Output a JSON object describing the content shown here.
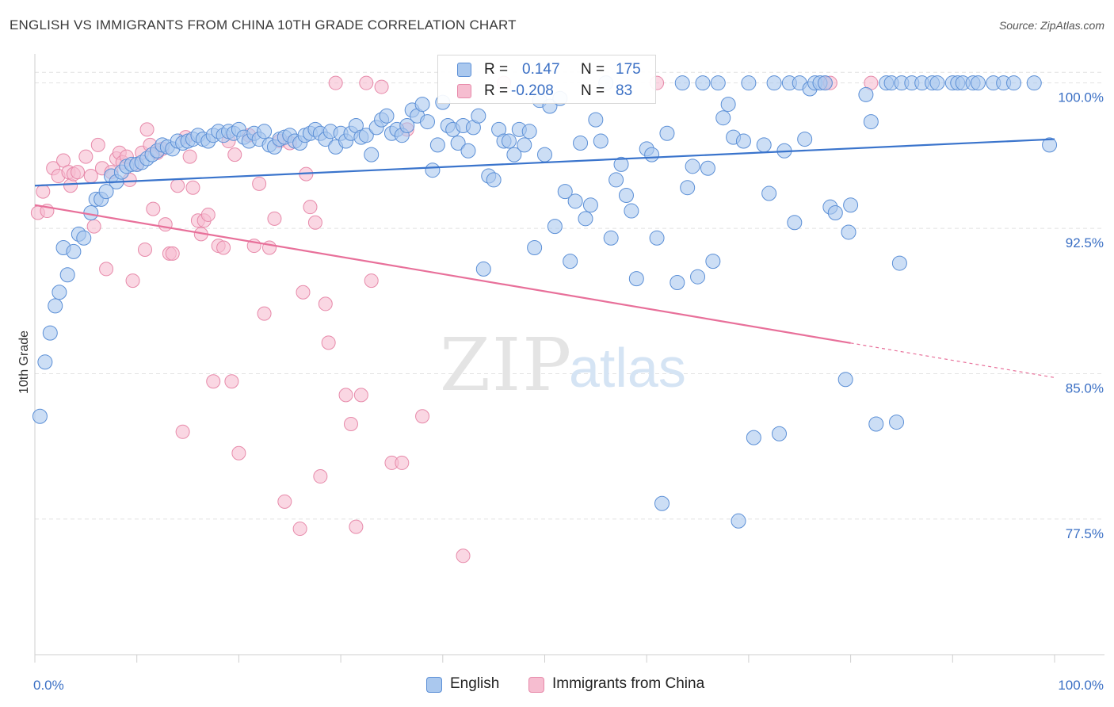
{
  "header": {
    "title": "ENGLISH VS IMMIGRANTS FROM CHINA 10TH GRADE CORRELATION CHART",
    "source": "Source: ZipAtlas.com"
  },
  "watermark": {
    "zip": "ZIP",
    "atlas": "atlas"
  },
  "legend": {
    "r_label": "R =",
    "n_label": "N =",
    "english": {
      "r": "0.147",
      "n": "175"
    },
    "china": {
      "r": "-0.208",
      "n": "83"
    }
  },
  "colors": {
    "english_fill": "#aac8ee",
    "english_stroke": "#5b8fd6",
    "english_line": "#3a74cc",
    "china_fill": "#f6bdd0",
    "china_stroke": "#e78aaa",
    "china_line": "#e8709a",
    "tick_text": "#3a6fc4",
    "grid": "#e2e2e2"
  },
  "chart_data": {
    "type": "scatter",
    "xlabel": "",
    "ylabel": "10th Grade",
    "xlim": [
      0,
      100
    ],
    "ylim": [
      70.5,
      101.5
    ],
    "x_tick_labels": [
      "0.0%",
      "100.0%"
    ],
    "y_ticks": [
      77.5,
      85.0,
      92.5,
      100.0
    ],
    "y_tick_labels": [
      "77.5%",
      "85.0%",
      "92.5%",
      "100.0%"
    ],
    "grid": true,
    "legend_position": "bottom-center",
    "series": [
      {
        "name": "English",
        "trend": {
          "x0": 0,
          "y0": 94.7,
          "x1": 100,
          "y1": 97.1
        },
        "points": [
          [
            0.5,
            82.8
          ],
          [
            1,
            85.6
          ],
          [
            1.5,
            87.1
          ],
          [
            2,
            88.5
          ],
          [
            2.4,
            89.2
          ],
          [
            2.8,
            91.5
          ],
          [
            3.2,
            90.1
          ],
          [
            3.8,
            91.3
          ],
          [
            4.3,
            92.2
          ],
          [
            4.8,
            92.0
          ],
          [
            5.5,
            93.3
          ],
          [
            6,
            94.0
          ],
          [
            6.5,
            94.0
          ],
          [
            7,
            94.4
          ],
          [
            7.5,
            95.2
          ],
          [
            8,
            94.9
          ],
          [
            8.5,
            95.4
          ],
          [
            9,
            95.7
          ],
          [
            9.5,
            95.8
          ],
          [
            10,
            95.8
          ],
          [
            10.5,
            95.9
          ],
          [
            11,
            96.1
          ],
          [
            11.5,
            96.3
          ],
          [
            12,
            96.5
          ],
          [
            12.5,
            96.8
          ],
          [
            13,
            96.7
          ],
          [
            13.5,
            96.6
          ],
          [
            14,
            97.0
          ],
          [
            14.5,
            96.9
          ],
          [
            15,
            97.0
          ],
          [
            15.5,
            97.1
          ],
          [
            16,
            97.3
          ],
          [
            16.5,
            97.1
          ],
          [
            17,
            97.0
          ],
          [
            17.5,
            97.3
          ],
          [
            18,
            97.5
          ],
          [
            18.5,
            97.3
          ],
          [
            19,
            97.5
          ],
          [
            19.5,
            97.4
          ],
          [
            20,
            97.6
          ],
          [
            20.5,
            97.2
          ],
          [
            21,
            97.0
          ],
          [
            21.5,
            97.4
          ],
          [
            22,
            97.1
          ],
          [
            22.5,
            97.5
          ],
          [
            23,
            96.8
          ],
          [
            23.5,
            96.7
          ],
          [
            24,
            97.1
          ],
          [
            24.5,
            97.2
          ],
          [
            25,
            97.3
          ],
          [
            25.5,
            97.0
          ],
          [
            26,
            96.9
          ],
          [
            26.5,
            97.3
          ],
          [
            27,
            97.4
          ],
          [
            27.5,
            97.6
          ],
          [
            28,
            97.4
          ],
          [
            28.5,
            97.1
          ],
          [
            29,
            97.5
          ],
          [
            29.5,
            96.7
          ],
          [
            30,
            97.4
          ],
          [
            30.5,
            97.0
          ],
          [
            31,
            97.4
          ],
          [
            31.5,
            97.8
          ],
          [
            32,
            97.2
          ],
          [
            32.5,
            97.3
          ],
          [
            33,
            96.3
          ],
          [
            33.5,
            97.7
          ],
          [
            34,
            98.1
          ],
          [
            34.5,
            98.3
          ],
          [
            35,
            97.4
          ],
          [
            35.5,
            97.6
          ],
          [
            36,
            97.3
          ],
          [
            36.5,
            97.8
          ],
          [
            37,
            98.6
          ],
          [
            37.5,
            98.3
          ],
          [
            38,
            98.9
          ],
          [
            38.5,
            98.0
          ],
          [
            39,
            95.5
          ],
          [
            39.5,
            96.8
          ],
          [
            40,
            99.0
          ],
          [
            40.5,
            97.8
          ],
          [
            41,
            97.6
          ],
          [
            41.5,
            96.9
          ],
          [
            42,
            97.8
          ],
          [
            42.5,
            96.5
          ],
          [
            43,
            97.7
          ],
          [
            43.5,
            98.3
          ],
          [
            44,
            90.4
          ],
          [
            44.5,
            95.2
          ],
          [
            45,
            95.0
          ],
          [
            45.5,
            97.6
          ],
          [
            46,
            97.0
          ],
          [
            46.5,
            97.0
          ],
          [
            47,
            96.3
          ],
          [
            47.5,
            97.6
          ],
          [
            48,
            96.8
          ],
          [
            48.5,
            97.5
          ],
          [
            49,
            91.5
          ],
          [
            49.5,
            99.1
          ],
          [
            50,
            96.3
          ],
          [
            50.5,
            98.8
          ],
          [
            51,
            92.6
          ],
          [
            51.5,
            99.2
          ],
          [
            52,
            94.4
          ],
          [
            52.5,
            90.8
          ],
          [
            53,
            93.9
          ],
          [
            53.5,
            96.9
          ],
          [
            54,
            93.0
          ],
          [
            54.5,
            93.7
          ],
          [
            55,
            98.1
          ],
          [
            55.5,
            97.0
          ],
          [
            56,
            100.0
          ],
          [
            56.5,
            92.0
          ],
          [
            57,
            95.0
          ],
          [
            57.5,
            95.8
          ],
          [
            58,
            94.2
          ],
          [
            58.5,
            93.4
          ],
          [
            59,
            89.9
          ],
          [
            60,
            96.6
          ],
          [
            60.5,
            96.3
          ],
          [
            61,
            92.0
          ],
          [
            61.5,
            78.3
          ],
          [
            62,
            97.4
          ],
          [
            63,
            89.7
          ],
          [
            63.5,
            100.0
          ],
          [
            64,
            94.6
          ],
          [
            64.5,
            95.7
          ],
          [
            65,
            90.0
          ],
          [
            65.5,
            100.0
          ],
          [
            66,
            95.6
          ],
          [
            66.5,
            90.8
          ],
          [
            67,
            100.0
          ],
          [
            67.5,
            98.2
          ],
          [
            68,
            98.9
          ],
          [
            68.5,
            97.2
          ],
          [
            69,
            77.4
          ],
          [
            69.5,
            97.0
          ],
          [
            70,
            100.0
          ],
          [
            70.5,
            81.7
          ],
          [
            71.5,
            96.8
          ],
          [
            72,
            94.3
          ],
          [
            72.5,
            100.0
          ],
          [
            73,
            81.9
          ],
          [
            73.5,
            96.5
          ],
          [
            74,
            100.0
          ],
          [
            74.5,
            92.8
          ],
          [
            75,
            100.0
          ],
          [
            75.5,
            97.1
          ],
          [
            76,
            99.7
          ],
          [
            76.5,
            100.0
          ],
          [
            77,
            100.0
          ],
          [
            77.5,
            100.0
          ],
          [
            78,
            93.6
          ],
          [
            78.5,
            93.3
          ],
          [
            79.5,
            84.7
          ],
          [
            79.8,
            92.3
          ],
          [
            80,
            93.7
          ],
          [
            81.5,
            99.4
          ],
          [
            82,
            98.0
          ],
          [
            82.5,
            82.4
          ],
          [
            83.5,
            100.0
          ],
          [
            84,
            100.0
          ],
          [
            84.5,
            82.5
          ],
          [
            84.8,
            90.7
          ],
          [
            85,
            100.0
          ],
          [
            86,
            100.0
          ],
          [
            87,
            100.0
          ],
          [
            88,
            100.0
          ],
          [
            88.5,
            100.0
          ],
          [
            90,
            100.0
          ],
          [
            90.5,
            100.0
          ],
          [
            91,
            100.0
          ],
          [
            92,
            100.0
          ],
          [
            92.5,
            100.0
          ],
          [
            94,
            100.0
          ],
          [
            95,
            100.0
          ],
          [
            96,
            100.0
          ],
          [
            98,
            100.0
          ],
          [
            99.5,
            96.8
          ]
        ]
      },
      {
        "name": "Immigrants from China",
        "trend": {
          "x0": 0,
          "y0": 93.7,
          "x1": 100,
          "y1": 84.8,
          "solid_until": 80
        },
        "points": [
          [
            0.3,
            93.3
          ],
          [
            0.8,
            94.4
          ],
          [
            1.2,
            93.4
          ],
          [
            1.8,
            95.6
          ],
          [
            2.3,
            95.2
          ],
          [
            2.8,
            96.0
          ],
          [
            3.3,
            95.4
          ],
          [
            3.5,
            94.7
          ],
          [
            3.8,
            95.3
          ],
          [
            4.2,
            95.4
          ],
          [
            5,
            96.2
          ],
          [
            5.5,
            95.2
          ],
          [
            5.8,
            92.6
          ],
          [
            6.2,
            96.8
          ],
          [
            6.6,
            95.6
          ],
          [
            7,
            90.4
          ],
          [
            7.5,
            95.4
          ],
          [
            8,
            96.1
          ],
          [
            8.3,
            96.4
          ],
          [
            8.6,
            95.9
          ],
          [
            9,
            96.2
          ],
          [
            9.3,
            95.0
          ],
          [
            9.6,
            89.8
          ],
          [
            10,
            95.8
          ],
          [
            10.5,
            96.4
          ],
          [
            10.8,
            91.4
          ],
          [
            11,
            97.6
          ],
          [
            11.3,
            96.8
          ],
          [
            11.6,
            93.5
          ],
          [
            12,
            96.4
          ],
          [
            12.5,
            96.6
          ],
          [
            12.8,
            92.7
          ],
          [
            13.2,
            91.2
          ],
          [
            13.5,
            91.2
          ],
          [
            14,
            94.7
          ],
          [
            14.5,
            82.0
          ],
          [
            14.8,
            97.2
          ],
          [
            15.2,
            96.2
          ],
          [
            15.5,
            94.6
          ],
          [
            16,
            92.9
          ],
          [
            16.3,
            92.2
          ],
          [
            16.6,
            92.9
          ],
          [
            17,
            93.2
          ],
          [
            17.5,
            84.6
          ],
          [
            18,
            91.6
          ],
          [
            18.5,
            91.5
          ],
          [
            19,
            97.0
          ],
          [
            19.3,
            84.6
          ],
          [
            19.6,
            96.3
          ],
          [
            20,
            80.9
          ],
          [
            21,
            97.3
          ],
          [
            21.5,
            91.6
          ],
          [
            22,
            94.8
          ],
          [
            22.5,
            88.1
          ],
          [
            23,
            91.5
          ],
          [
            23.5,
            93.0
          ],
          [
            24,
            97.0
          ],
          [
            24.5,
            78.4
          ],
          [
            25,
            96.9
          ],
          [
            26,
            77.0
          ],
          [
            26.3,
            89.2
          ],
          [
            26.6,
            95.3
          ],
          [
            27,
            93.6
          ],
          [
            27.5,
            92.8
          ],
          [
            28,
            79.7
          ],
          [
            28.5,
            88.6
          ],
          [
            28.8,
            86.6
          ],
          [
            29.5,
            100.0
          ],
          [
            30.5,
            83.9
          ],
          [
            31,
            82.4
          ],
          [
            31.5,
            77.1
          ],
          [
            32,
            83.9
          ],
          [
            32.5,
            100.0
          ],
          [
            33,
            89.8
          ],
          [
            34,
            99.8
          ],
          [
            35,
            80.4
          ],
          [
            36,
            80.4
          ],
          [
            36.5,
            97.6
          ],
          [
            38,
            82.8
          ],
          [
            42,
            75.6
          ],
          [
            46,
            100.0
          ],
          [
            61,
            100.0
          ],
          [
            77.5,
            100.0
          ],
          [
            78,
            100.0
          ],
          [
            82,
            100.0
          ]
        ]
      }
    ]
  }
}
